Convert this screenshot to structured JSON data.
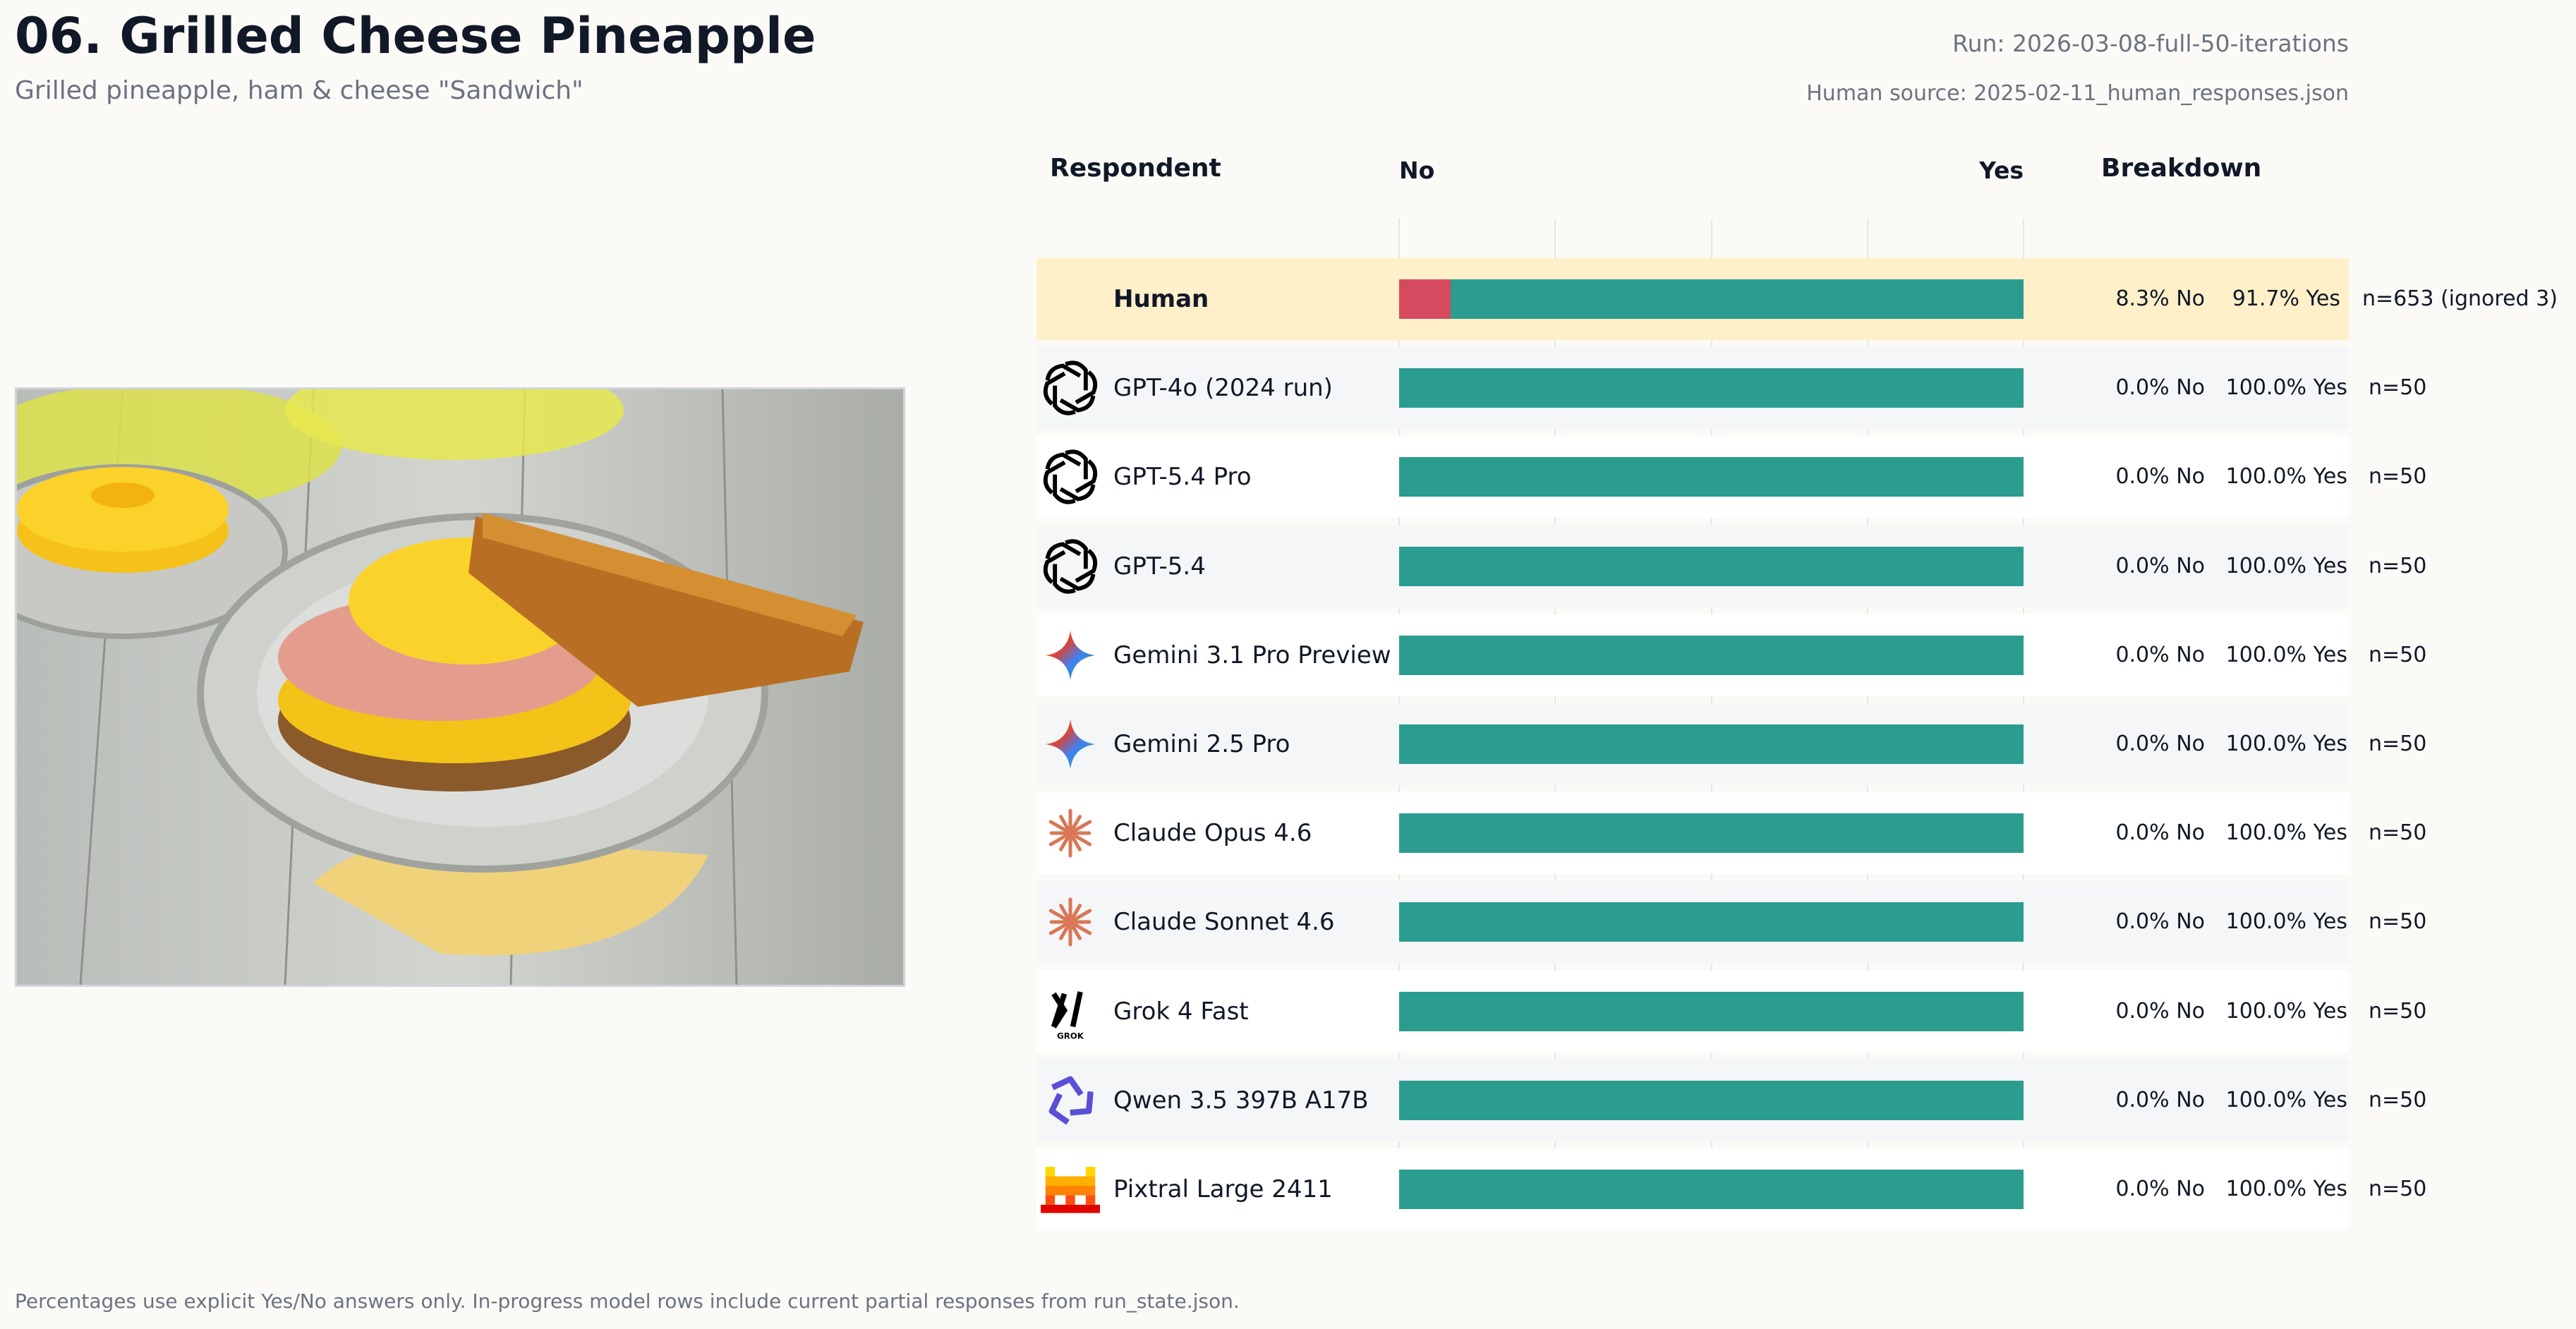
{
  "header": {
    "title": "06. Grilled Cheese Pineapple",
    "subtitle": "Grilled pineapple, ham & cheese \"Sandwich\"",
    "run": "Run: 2026-03-08-full-50-iterations",
    "human_source": "Human source: 2025-02-11_human_responses.json"
  },
  "columns": {
    "respondent": "Respondent",
    "no": "No",
    "yes": "Yes",
    "breakdown": "Breakdown"
  },
  "colors": {
    "no": "#d64a5f",
    "yes": "#2a9d8f",
    "human_row": "#fff0c9",
    "alt_row": "#f5f6f8",
    "row": "#ffffff"
  },
  "chart_data": {
    "type": "bar",
    "orientation": "horizontal-stacked",
    "xlim": [
      0,
      100
    ],
    "grid": true,
    "categories": [
      "Human",
      "GPT-4o (2024 run)",
      "GPT-5.4 Pro",
      "GPT-5.4",
      "Gemini 3.1 Pro Preview",
      "Gemini 2.5 Pro",
      "Claude Opus 4.6",
      "Claude Sonnet 4.6",
      "Grok 4 Fast",
      "Qwen 3.5 397B A17B",
      "Pixtral Large 2411"
    ],
    "series": [
      {
        "name": "No",
        "values": [
          8.3,
          0,
          0,
          0,
          0,
          0,
          0,
          0,
          0,
          0,
          0
        ]
      },
      {
        "name": "Yes",
        "values": [
          91.7,
          100,
          100,
          100,
          100,
          100,
          100,
          100,
          100,
          100,
          100
        ]
      }
    ]
  },
  "rows": [
    {
      "name": "Human",
      "icon": "none",
      "no_pct": 8.3,
      "yes_pct": 91.7,
      "no_label": "8.3% No",
      "yes_label": "91.7% Yes",
      "n_label": "n=653 (ignored 3)"
    },
    {
      "name": "GPT-4o (2024 run)",
      "icon": "openai-icon",
      "no_pct": 0,
      "yes_pct": 100,
      "no_label": "0.0% No",
      "yes_label": "100.0% Yes",
      "n_label": "n=50"
    },
    {
      "name": "GPT-5.4 Pro",
      "icon": "openai-icon",
      "no_pct": 0,
      "yes_pct": 100,
      "no_label": "0.0% No",
      "yes_label": "100.0% Yes",
      "n_label": "n=50"
    },
    {
      "name": "GPT-5.4",
      "icon": "openai-icon",
      "no_pct": 0,
      "yes_pct": 100,
      "no_label": "0.0% No",
      "yes_label": "100.0% Yes",
      "n_label": "n=50"
    },
    {
      "name": "Gemini 3.1 Pro Preview",
      "icon": "gemini-icon",
      "no_pct": 0,
      "yes_pct": 100,
      "no_label": "0.0% No",
      "yes_label": "100.0% Yes",
      "n_label": "n=50"
    },
    {
      "name": "Gemini 2.5 Pro",
      "icon": "gemini-icon",
      "no_pct": 0,
      "yes_pct": 100,
      "no_label": "0.0% No",
      "yes_label": "100.0% Yes",
      "n_label": "n=50"
    },
    {
      "name": "Claude Opus 4.6",
      "icon": "claude-icon",
      "no_pct": 0,
      "yes_pct": 100,
      "no_label": "0.0% No",
      "yes_label": "100.0% Yes",
      "n_label": "n=50"
    },
    {
      "name": "Claude Sonnet 4.6",
      "icon": "claude-icon",
      "no_pct": 0,
      "yes_pct": 100,
      "no_label": "0.0% No",
      "yes_label": "100.0% Yes",
      "n_label": "n=50"
    },
    {
      "name": "Grok 4 Fast",
      "icon": "grok-icon",
      "icon_text": "GROK",
      "no_pct": 0,
      "yes_pct": 100,
      "no_label": "0.0% No",
      "yes_label": "100.0% Yes",
      "n_label": "n=50"
    },
    {
      "name": "Qwen 3.5 397B A17B",
      "icon": "qwen-icon",
      "no_pct": 0,
      "yes_pct": 100,
      "no_label": "0.0% No",
      "yes_label": "100.0% Yes",
      "n_label": "n=50"
    },
    {
      "name": "Pixtral Large 2411",
      "icon": "mistral-icon",
      "no_pct": 0,
      "yes_pct": 100,
      "no_label": "0.0% No",
      "yes_label": "100.0% Yes",
      "n_label": "n=50"
    }
  ],
  "footer": "Percentages use explicit Yes/No answers only. In-progress model rows include current partial responses from run_state.json."
}
